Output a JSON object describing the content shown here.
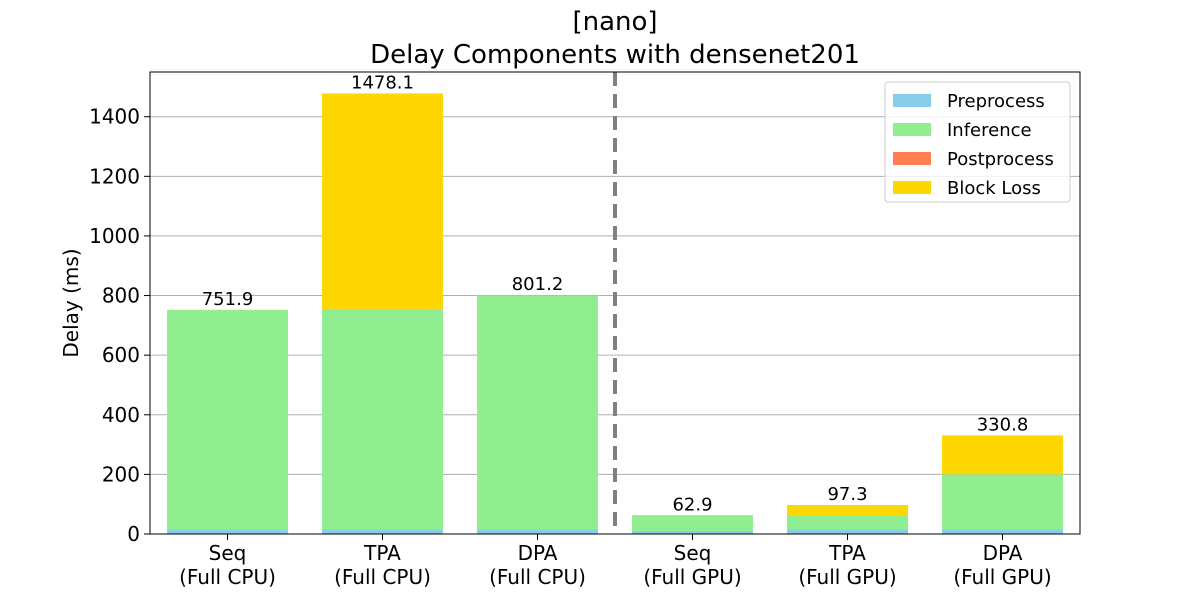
{
  "chart_data": {
    "type": "bar",
    "stacked": true,
    "title": "[nano]",
    "subtitle": "Delay Components with densenet201",
    "xlabel": "",
    "ylabel": "Delay (ms)",
    "ylim": [
      0,
      1550
    ],
    "yticks": [
      0,
      200,
      400,
      600,
      800,
      1000,
      1200,
      1400
    ],
    "grid": "y",
    "legend_position": "top-right",
    "categories": [
      [
        "Seq",
        "(Full CPU)"
      ],
      [
        "TPA",
        "(Full CPU)"
      ],
      [
        "DPA",
        "(Full CPU)"
      ],
      [
        "Seq",
        "(Full GPU)"
      ],
      [
        "TPA",
        "(Full GPU)"
      ],
      [
        "DPA",
        "(Full GPU)"
      ]
    ],
    "series": [
      {
        "name": "Preprocess",
        "color": "#87CEEB",
        "values": [
          15,
          15,
          15,
          10,
          15,
          15
        ]
      },
      {
        "name": "Inference",
        "color": "#90EE90",
        "values": [
          736.4,
          740,
          785.7,
          52.4,
          47,
          185
        ]
      },
      {
        "name": "Postprocess",
        "color": "#FF7F50",
        "values": [
          0.5,
          0.5,
          0.5,
          0.5,
          0.5,
          0.5
        ]
      },
      {
        "name": "Block Loss",
        "color": "#FFD700",
        "values": [
          0,
          722.6,
          0,
          0,
          34.8,
          130.3
        ]
      }
    ],
    "totals": [
      "751.9",
      "1478.1",
      "801.2",
      "62.9",
      "97.3",
      "330.8"
    ],
    "divider_after_category": 2,
    "divider_color": "#808080"
  }
}
